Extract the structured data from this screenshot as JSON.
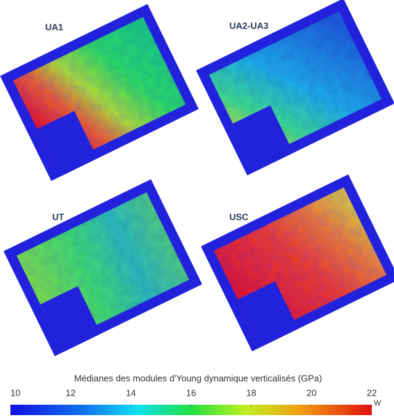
{
  "panels": [
    {
      "label": "UA1"
    },
    {
      "label": "UA2-UA3"
    },
    {
      "label": "UT"
    },
    {
      "label": "USC"
    }
  ],
  "colorbar": {
    "title": "Médianes des modules d'Young dynamique verticalisés (GPa)",
    "lim": [
      10,
      22
    ],
    "ticks": [
      10,
      12,
      14,
      16,
      18,
      20,
      22
    ]
  },
  "compass_label": "W"
}
